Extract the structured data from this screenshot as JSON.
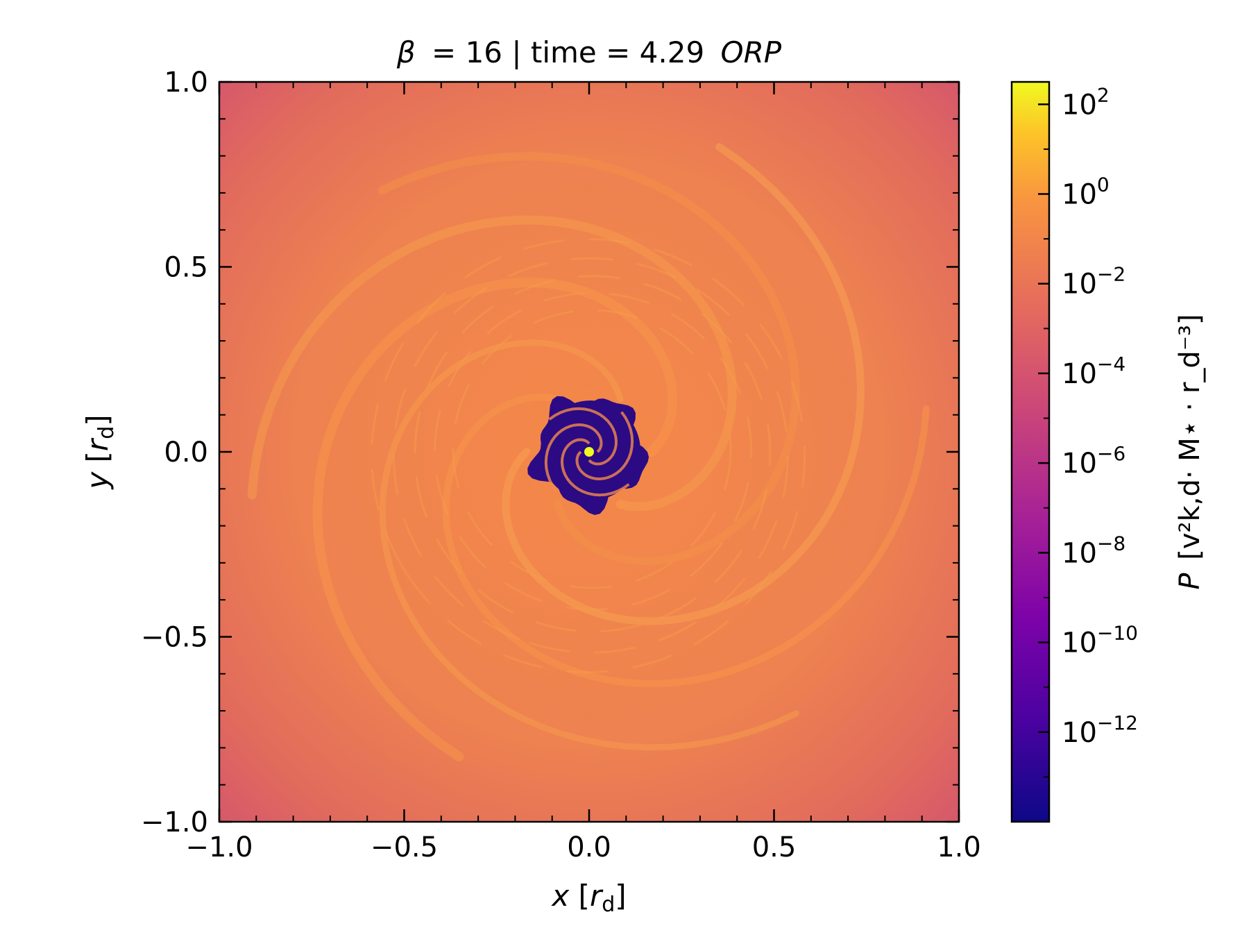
{
  "chart_data": {
    "type": "heatmap",
    "title": {
      "beta_symbol": "β",
      "beta_value": "= 16 | time = 4.29",
      "unit": "ORP"
    },
    "xlabel": {
      "var": "x",
      "open": " [",
      "sym": "r",
      "sub": "d",
      "close": "]"
    },
    "ylabel": {
      "var": "y",
      "open": " [",
      "sym": "r",
      "sub": "d",
      "close": "]"
    },
    "xlim": [
      -1.0,
      1.0
    ],
    "ylim": [
      -1.0,
      1.0
    ],
    "xticks": [
      -1.0,
      -0.5,
      0.0,
      0.5,
      1.0
    ],
    "yticks": [
      -1.0,
      -0.5,
      0.0,
      0.5,
      1.0
    ],
    "xtick_labels": [
      "−1.0",
      "−0.5",
      "0.0",
      "0.5",
      "1.0"
    ],
    "ytick_labels": [
      "−1.0",
      "−0.5",
      "0.0",
      "0.5",
      "1.0"
    ],
    "colorbar": {
      "scale": "log",
      "range_exponent": [
        -14,
        2.5
      ],
      "ticks_exponent": [
        2,
        0,
        -2,
        -4,
        -6,
        -8,
        -10,
        -12
      ],
      "tick_labels": [
        {
          "base": "10",
          "exp": "2"
        },
        {
          "base": "10",
          "exp": "0"
        },
        {
          "base": "10",
          "exp": "−2"
        },
        {
          "base": "10",
          "exp": "−4"
        },
        {
          "base": "10",
          "exp": "−6"
        },
        {
          "base": "10",
          "exp": "−8"
        },
        {
          "base": "10",
          "exp": "−10"
        },
        {
          "base": "10",
          "exp": "−12"
        }
      ],
      "label": {
        "var": "P",
        "text": " [v²k,d· M⋆ · r_d⁻³]"
      },
      "colormap": "plasma",
      "colors": [
        "#0d0887",
        "#5302a3",
        "#8b0aa5",
        "#b83289",
        "#db5c68",
        "#f48849",
        "#febd2a",
        "#f0f921"
      ]
    },
    "field_description_values": {
      "outer_corner_log10P": -5.5,
      "disk_log10P": -2.7,
      "spiral_arm_log10P": -1.8,
      "inner_cavity_log10P": -13.0,
      "center_log10P": 2.0
    }
  }
}
